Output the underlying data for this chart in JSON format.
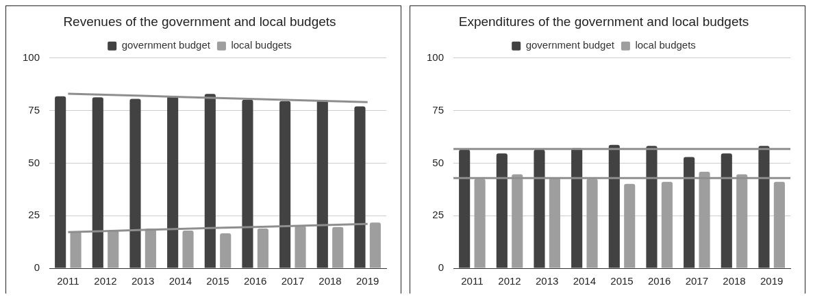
{
  "chart_data": [
    {
      "type": "bar",
      "title": "Revenues of the government and local budgets",
      "categories": [
        "2011",
        "2012",
        "2013",
        "2014",
        "2015",
        "2016",
        "2017",
        "2018",
        "2019"
      ],
      "series": [
        {
          "name": "government budget",
          "color": "#424242",
          "values": [
            81.8,
            81.3,
            80.6,
            81.8,
            82.9,
            80.2,
            79.5,
            80,
            77
          ]
        },
        {
          "name": "local budgets",
          "color": "#9e9e9e",
          "values": [
            17.3,
            18.2,
            18.9,
            17.9,
            16.6,
            18.9,
            20.1,
            19.6,
            21.7
          ]
        },
        {
          "type": "line",
          "color": "#8e8e8e",
          "values": [
            83,
            82.5,
            82,
            81.5,
            81,
            80.5,
            80,
            79.5,
            79
          ]
        },
        {
          "type": "line",
          "color": "#8e8e8e",
          "values": [
            17.2,
            17.7,
            18.2,
            18.7,
            19.2,
            19.6,
            20.1,
            20.6,
            21.1
          ]
        }
      ],
      "ylim": [
        0,
        100
      ],
      "yticks": [
        0,
        25,
        50,
        75,
        100
      ],
      "grid": "y",
      "legend": "top",
      "marker": "none"
    },
    {
      "type": "bar",
      "title": "Expenditures of the government and local budgets",
      "categories": [
        "2011",
        "2012",
        "2013",
        "2014",
        "2015",
        "2016",
        "2017",
        "2018",
        "2019"
      ],
      "series": [
        {
          "name": "government budget",
          "color": "#424242",
          "values": [
            56.4,
            54.6,
            56.4,
            57.1,
            58.7,
            58.2,
            52.9,
            54.6,
            58.2
          ]
        },
        {
          "name": "local budgets",
          "color": "#9e9e9e",
          "values": [
            42.6,
            44.7,
            43.1,
            42.6,
            40.1,
            41.1,
            45.9,
            44.7,
            41.1
          ]
        }
      ],
      "ref_lines": [
        {
          "axis": "y",
          "value": 56.7,
          "color": "#8e8e8e"
        },
        {
          "axis": "y",
          "value": 42.9,
          "color": "#8e8e8e"
        }
      ],
      "ylim": [
        0,
        100
      ],
      "yticks": [
        0,
        25,
        50,
        75,
        100
      ],
      "grid": "y",
      "legend": "top"
    }
  ]
}
